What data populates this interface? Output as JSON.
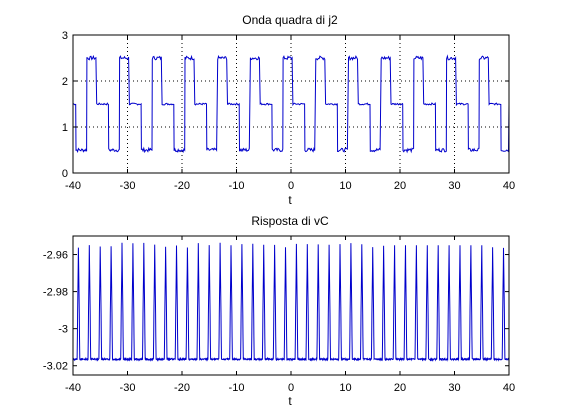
{
  "chart_data": [
    {
      "type": "line",
      "title": "Onda quadra di j2",
      "xlabel": "t",
      "ylabel": "",
      "xlim": [
        -40,
        40
      ],
      "ylim": [
        0,
        3
      ],
      "xticks": [
        "-40",
        "-30",
        "-20",
        "-10",
        "0",
        "10",
        "20",
        "30",
        "40"
      ],
      "yticks": [
        "0",
        "1",
        "2",
        "3"
      ],
      "grid": true,
      "color": "#0000cc",
      "series": [
        {
          "period": 6,
          "first_cycle_start": -39.5,
          "pattern": {
            "high_level": 2.5,
            "mid_level": 1.5,
            "low_level": 0.5,
            "high_duration": 1.8,
            "mid_duration": 2.2,
            "low_duration": 2.0
          }
        }
      ]
    },
    {
      "type": "line",
      "title": "Risposta di vC",
      "xlabel": "t",
      "ylabel": "",
      "xlim": [
        -40,
        40
      ],
      "ylim": [
        -3.025,
        -2.95
      ],
      "xticks": [
        "-40",
        "-30",
        "-20",
        "-10",
        "0",
        "10",
        "20",
        "30",
        "40"
      ],
      "yticks": [
        "-2.96",
        "-2.98",
        "-3",
        "-3.02"
      ],
      "grid": false,
      "color": "#0000cc",
      "series": [
        {
          "period": 2,
          "first_peak": -39,
          "peak_value": -2.955,
          "trough_value": -3.0165
        }
      ]
    }
  ]
}
